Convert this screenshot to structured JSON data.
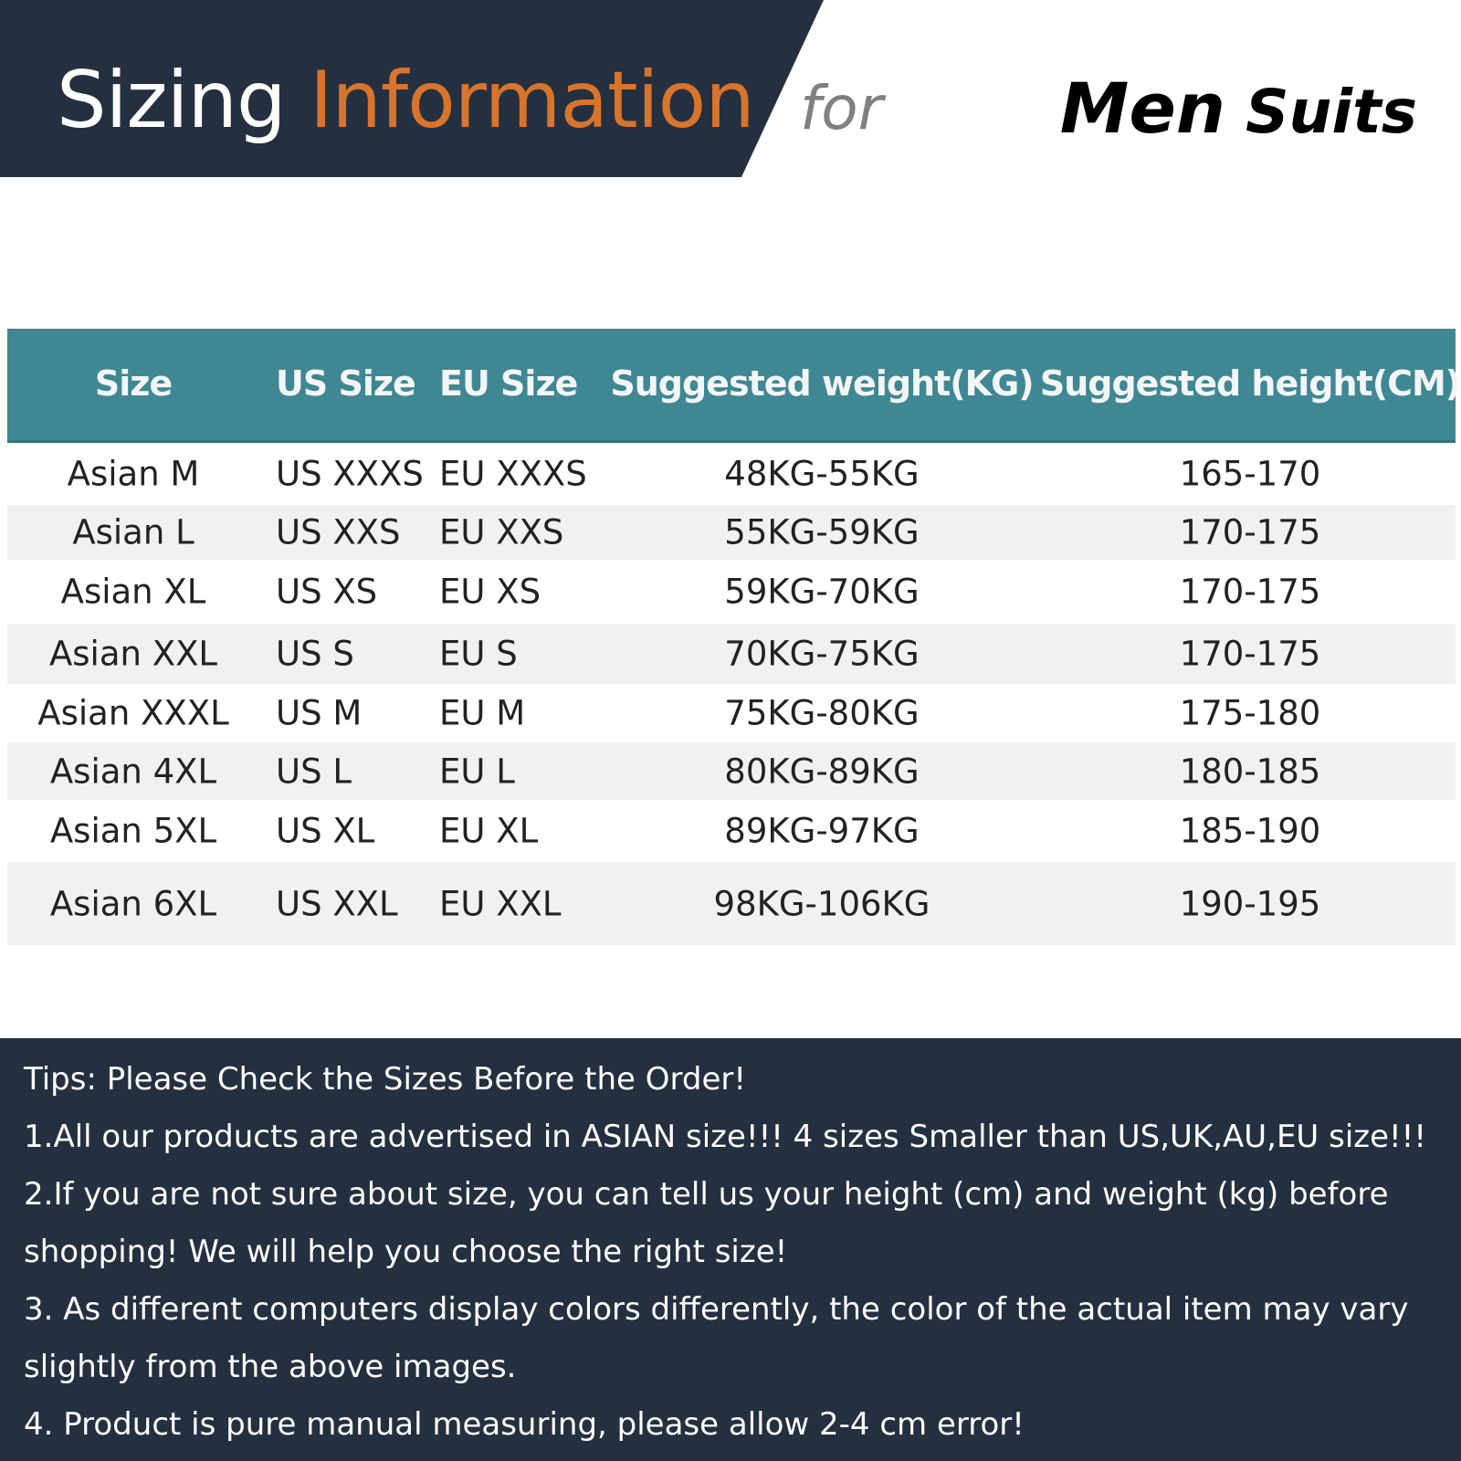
{
  "header": {
    "title_part1": "Sizing",
    "title_part2": "Information",
    "for": "for",
    "subject_part1": "Men",
    "subject_part2": "Suits"
  },
  "colors": {
    "dark": "#243040",
    "accent": "#d8742c",
    "table_header": "#3f8793",
    "row_alt": "#f1f1f1"
  },
  "table": {
    "columns": [
      "Size",
      "US Size",
      "EU Size",
      "Suggested weight(KG)",
      "Suggested height(CM)"
    ],
    "rows": [
      [
        "Asian M",
        "US XXXS",
        "EU XXXS",
        "48KG-55KG",
        "165-170"
      ],
      [
        "Asian L",
        "US XXS",
        "EU XXS",
        "55KG-59KG",
        "170-175"
      ],
      [
        "Asian XL",
        "US XS",
        "EU XS",
        "59KG-70KG",
        "170-175"
      ],
      [
        "Asian XXL",
        "US S",
        "EU S",
        "70KG-75KG",
        "170-175"
      ],
      [
        "Asian XXXL",
        "US M",
        "EU M",
        "75KG-80KG",
        "175-180"
      ],
      [
        "Asian 4XL",
        "US L",
        "EU L",
        "80KG-89KG",
        "180-185"
      ],
      [
        "Asian 5XL",
        "US XL",
        "EU XL",
        "89KG-97KG",
        "185-190"
      ],
      [
        "Asian 6XL",
        "US XXL",
        "EU XXL",
        "98KG-106KG",
        "190-195"
      ]
    ]
  },
  "tips": [
    "Tips: Please Check the Sizes Before the Order!",
    "1.All our products are advertised in ASIAN size!!! 4 sizes Smaller than US,UK,AU,EU size!!!",
    "2.If you are not sure about size, you can tell us your height (cm) and weight (kg) before",
    "shopping! We will help you choose the right size!",
    "3. As different computers display colors differently, the color of the actual item may vary",
    "slightly from the above images.",
    "4. Product is pure manual measuring, please allow 2-4 cm error!"
  ]
}
